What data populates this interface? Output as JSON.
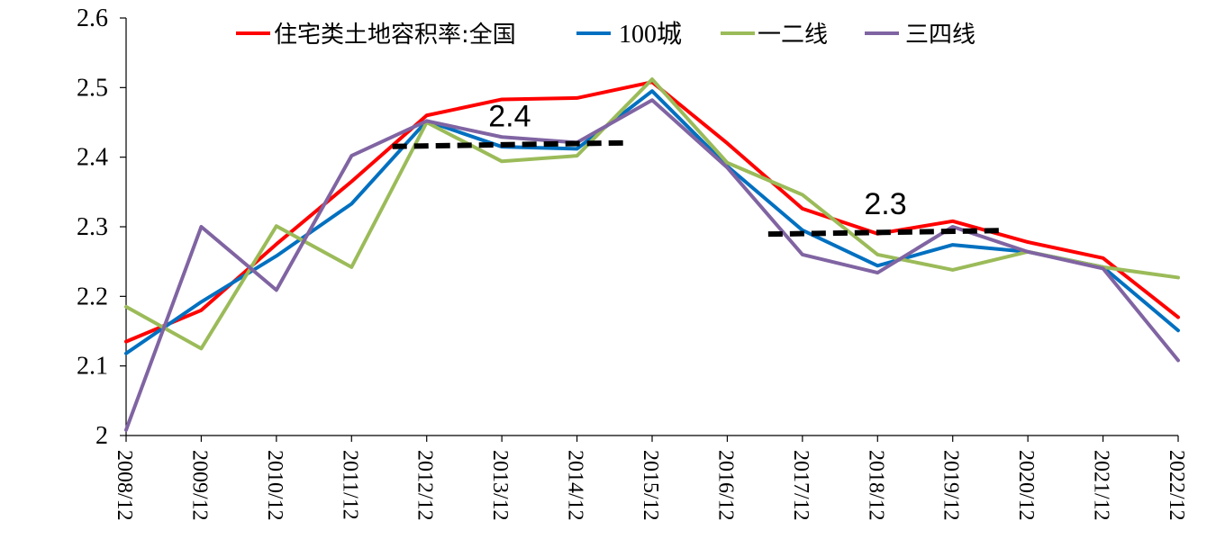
{
  "chart_data": {
    "type": "line",
    "title": "",
    "xlabel": "",
    "ylabel": "",
    "ylim": [
      2.0,
      2.6
    ],
    "yticks": [
      "2",
      "2.1",
      "2.2",
      "2.3",
      "2.4",
      "2.5",
      "2.6"
    ],
    "categories": [
      "2008/12",
      "2009/12",
      "2010/12",
      "2011/12",
      "2012/12",
      "2013/12",
      "2014/12",
      "2015/12",
      "2016/12",
      "2017/12",
      "2018/12",
      "2019/12",
      "2020/12",
      "2021/12",
      "2022/12"
    ],
    "legend_position": "top",
    "grid": false,
    "series": [
      {
        "name": "住宅类土地容积率:全国",
        "color": "#FF0000",
        "values": [
          2.135,
          2.18,
          2.275,
          2.365,
          2.46,
          2.483,
          2.485,
          2.508,
          2.42,
          2.326,
          2.29,
          2.308,
          2.278,
          2.255,
          2.17
        ]
      },
      {
        "name": "100城",
        "color": "#0070C0",
        "values": [
          2.118,
          2.192,
          2.258,
          2.333,
          2.452,
          2.415,
          2.412,
          2.495,
          2.387,
          2.295,
          2.244,
          2.274,
          2.264,
          2.242,
          2.151
        ]
      },
      {
        "name": "一二线",
        "color": "#9BBB59",
        "values": [
          2.185,
          2.125,
          2.301,
          2.242,
          2.45,
          2.394,
          2.402,
          2.512,
          2.392,
          2.346,
          2.26,
          2.238,
          2.264,
          2.242,
          2.227
        ]
      },
      {
        "name": "三四线",
        "color": "#8064A2",
        "values": [
          2.008,
          2.3,
          2.209,
          2.402,
          2.452,
          2.429,
          2.421,
          2.482,
          2.385,
          2.26,
          2.234,
          2.3,
          2.264,
          2.24,
          2.108
        ]
      }
    ],
    "annotations": [
      {
        "text": "2.4",
        "x_start": "2012/12",
        "x_end": "2015/12",
        "y": 2.418,
        "style": "dashed"
      },
      {
        "text": "2.3",
        "x_start": "2017/12",
        "x_end": "2020/12",
        "y": 2.292,
        "style": "dashed"
      }
    ]
  }
}
